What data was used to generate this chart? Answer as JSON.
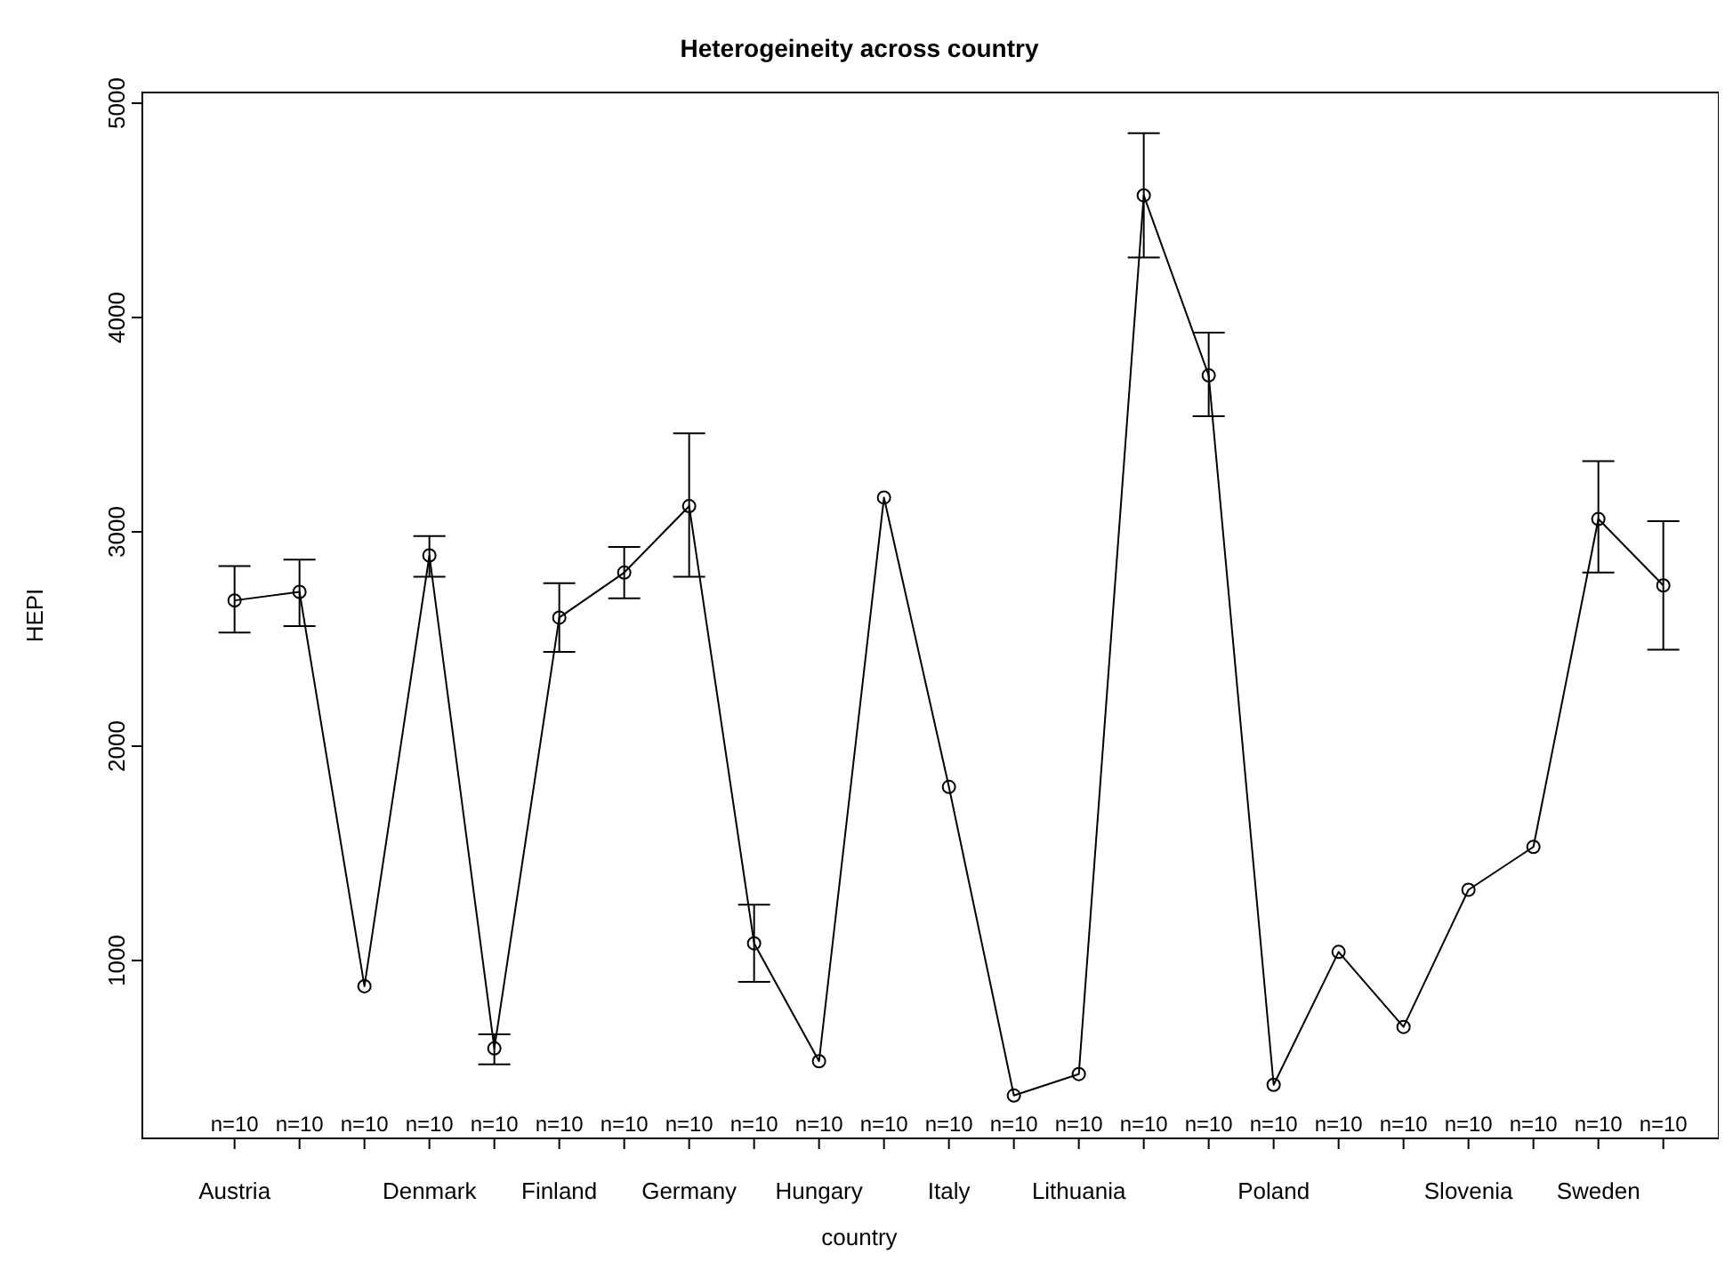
{
  "chart_data": {
    "type": "line",
    "title": "Heterogeineity across country",
    "xlabel": "country",
    "ylabel": "HEPI",
    "categories": [
      "Austria",
      null,
      null,
      "Denmark",
      null,
      "Finland",
      null,
      "Germany",
      null,
      "Hungary",
      null,
      "Italy",
      null,
      "Lithuania",
      null,
      null,
      "Poland",
      null,
      null,
      "Slovenia",
      null,
      "Sweden",
      null
    ],
    "values": [
      2680,
      2720,
      880,
      2890,
      590,
      2600,
      2810,
      3120,
      1080,
      530,
      3160,
      1810,
      370,
      470,
      4570,
      3730,
      420,
      1040,
      690,
      1330,
      1530,
      3060,
      2750
    ],
    "errors": [
      [
        2530,
        2840
      ],
      [
        2560,
        2870
      ],
      null,
      [
        2790,
        2980
      ],
      [
        515,
        655
      ],
      [
        2440,
        2760
      ],
      [
        2690,
        2930
      ],
      [
        2790,
        3460
      ],
      [
        900,
        1260
      ],
      null,
      null,
      null,
      null,
      null,
      [
        4280,
        4860
      ],
      [
        3540,
        3930
      ],
      null,
      null,
      null,
      null,
      null,
      [
        2810,
        3330
      ],
      [
        2450,
        3050
      ]
    ],
    "color": "#000000",
    "marker": "circle",
    "line_style": "solid",
    "ylim": [
      170,
      5050
    ],
    "yticks": [
      1000,
      2000,
      3000,
      4000,
      5000
    ],
    "grid": false,
    "annotations": [
      "n=10",
      "n=10",
      "n=10",
      "n=10",
      "n=10",
      "n=10",
      "n=10",
      "n=10",
      "n=10",
      "n=10",
      "n=10",
      "n=10",
      "n=10",
      "n=10",
      "n=10",
      "n=10",
      "n=10",
      "n=10",
      "n=10",
      "n=10",
      "n=10",
      "n=10",
      "n=10"
    ]
  }
}
